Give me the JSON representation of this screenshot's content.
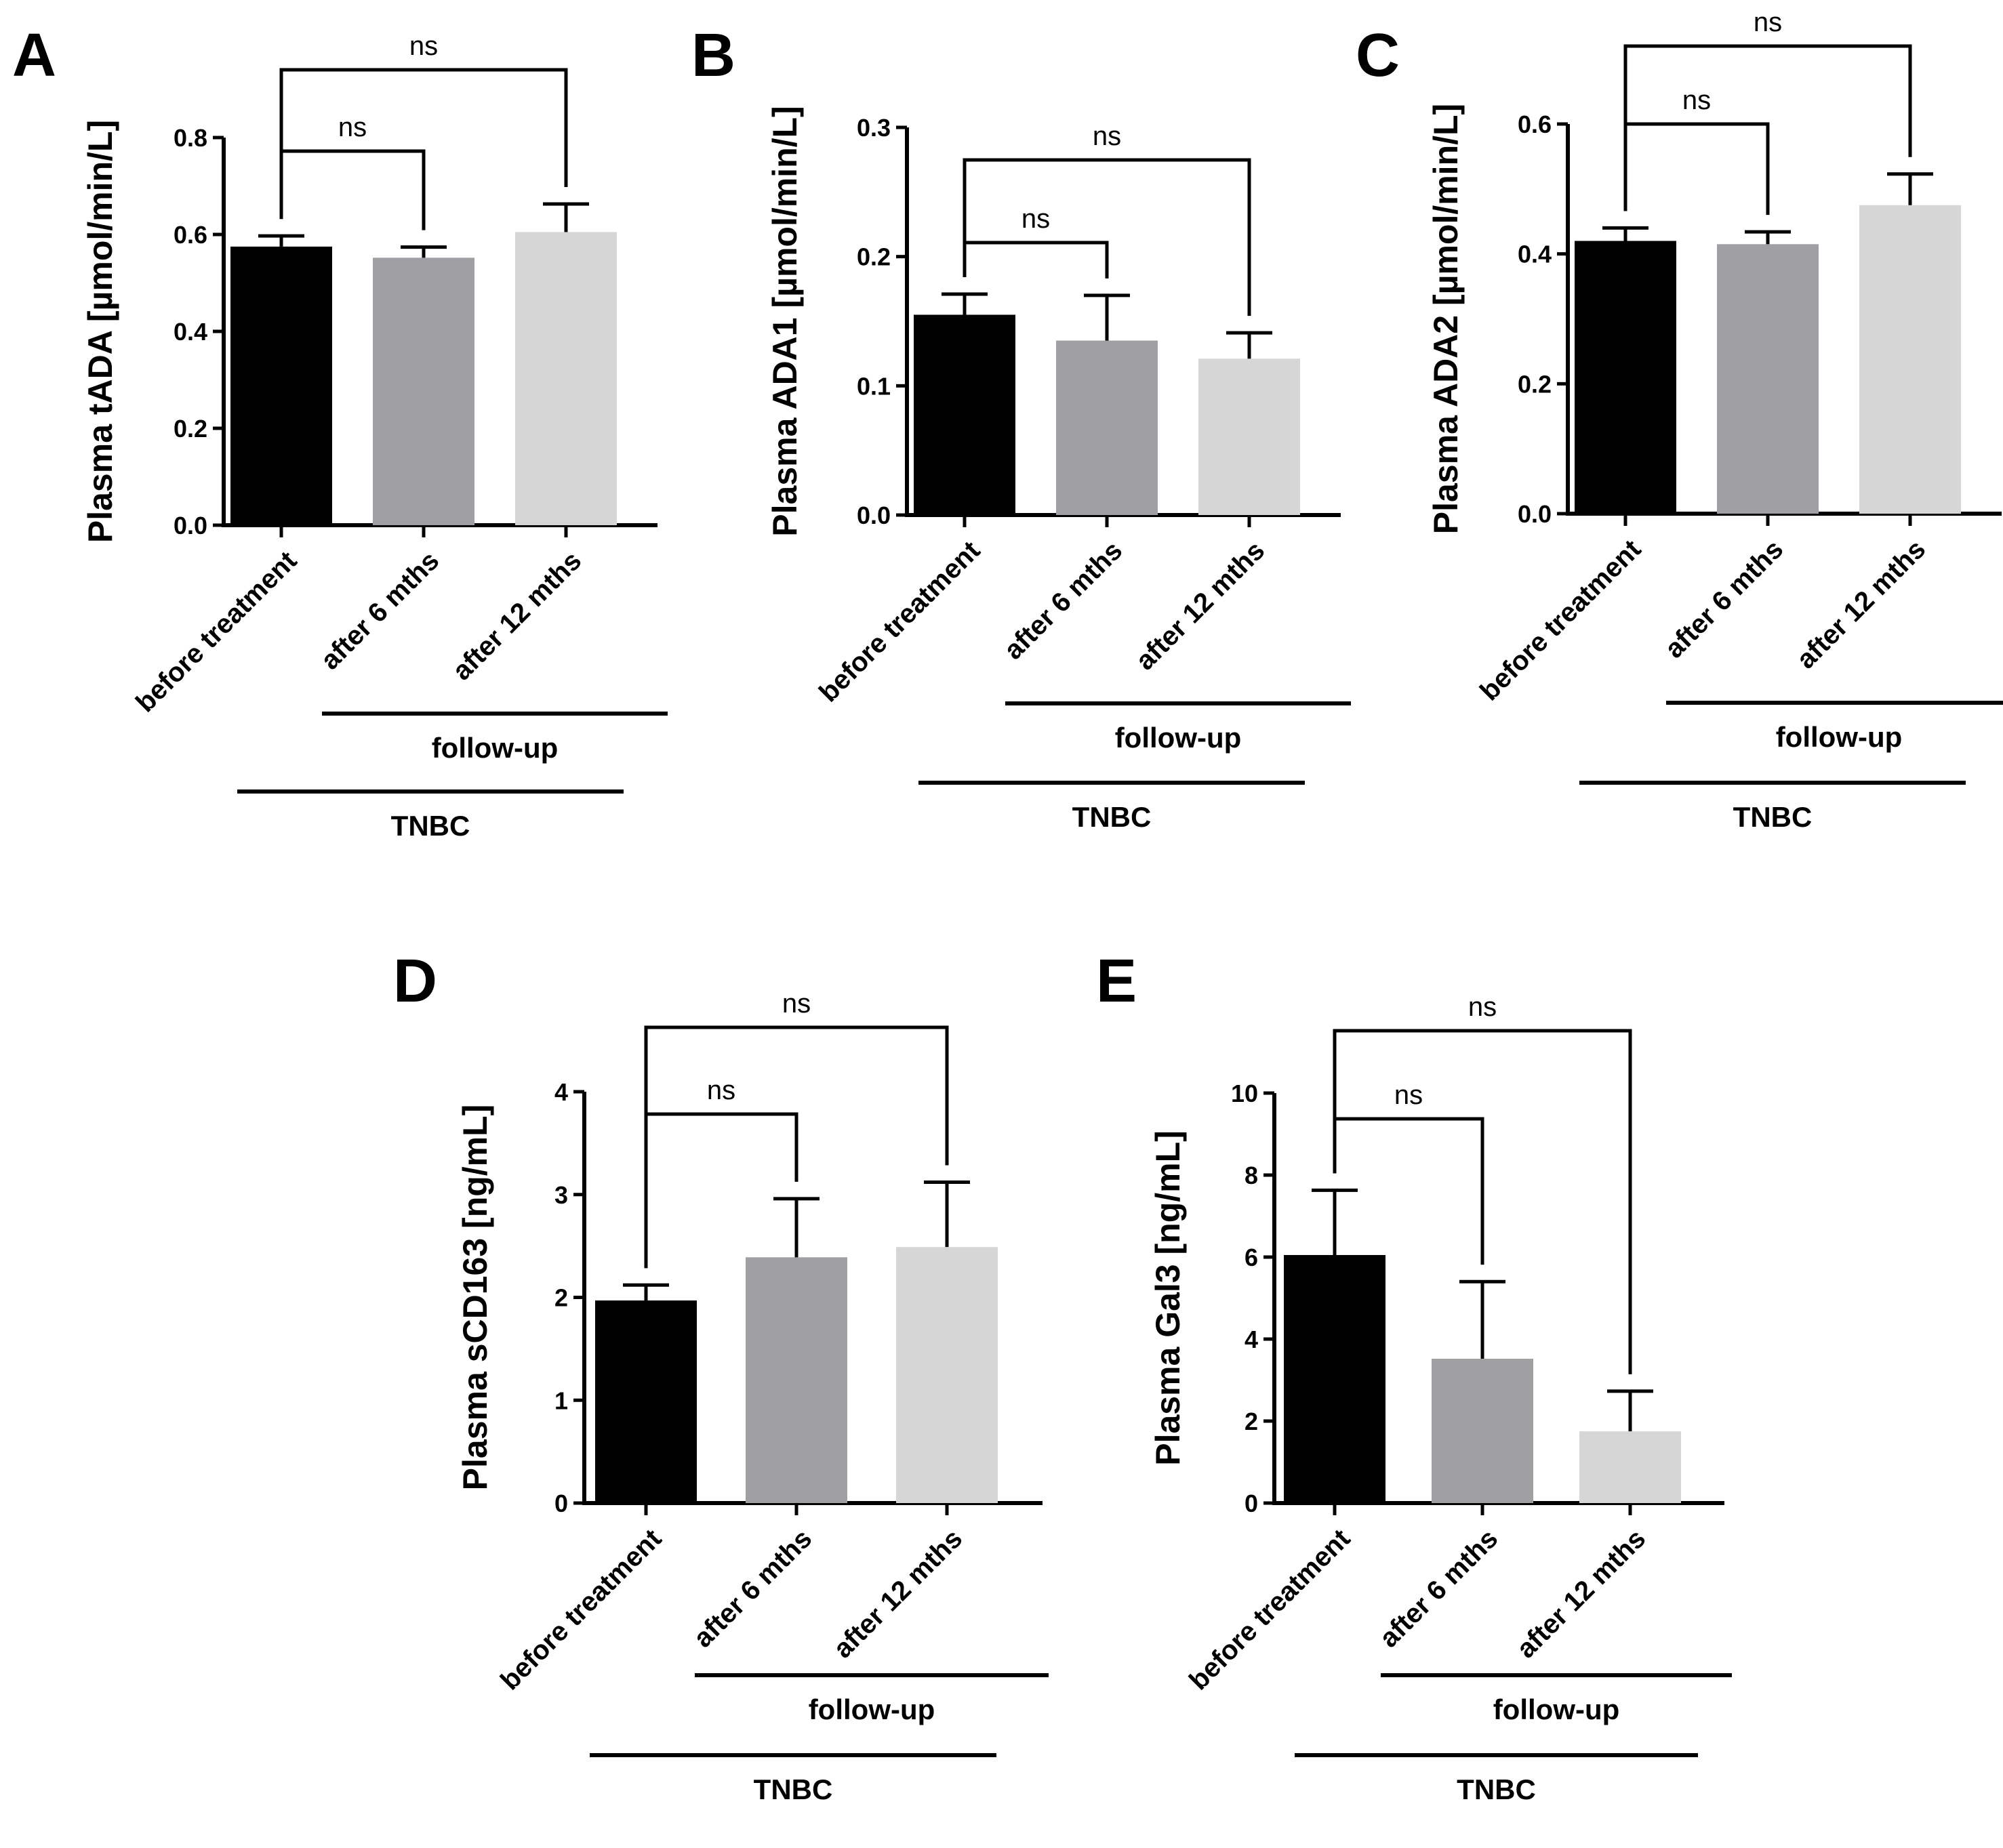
{
  "chart_data": [
    {
      "type": "bar",
      "panel": "A",
      "ylabel": "Plasma tADA [µmol/min/L]",
      "ylim": [
        0,
        0.8
      ],
      "yticks": [
        "0.0",
        "0.2",
        "0.4",
        "0.6",
        "0.8"
      ],
      "categories": [
        "before treatment",
        "after 6 mths",
        "after 12 mths"
      ],
      "values": [
        0.575,
        0.552,
        0.605
      ],
      "errors": [
        0.022,
        0.022,
        0.058
      ],
      "colors": [
        "#000000",
        "#a0a0a4",
        "#d6d6d6"
      ],
      "comparisons": [
        {
          "from": 0,
          "to": 1,
          "label": "ns"
        },
        {
          "from": 0,
          "to": 2,
          "label": "ns"
        }
      ],
      "group_labels": {
        "followup": "follow-up",
        "cohort": "TNBC"
      }
    },
    {
      "type": "bar",
      "panel": "B",
      "ylabel": "Plasma ADA1 [µmol/min/L]",
      "ylim": [
        0,
        0.3
      ],
      "yticks": [
        "0.0",
        "0.1",
        "0.2",
        "0.3"
      ],
      "categories": [
        "before treatment",
        "after 6 mths",
        "after 12 mths"
      ],
      "values": [
        0.155,
        0.135,
        0.121
      ],
      "errors": [
        0.016,
        0.035,
        0.02
      ],
      "colors": [
        "#000000",
        "#a0a0a4",
        "#d6d6d6"
      ],
      "comparisons": [
        {
          "from": 0,
          "to": 1,
          "label": "ns"
        },
        {
          "from": 0,
          "to": 2,
          "label": "ns"
        }
      ],
      "group_labels": {
        "followup": "follow-up",
        "cohort": "TNBC"
      }
    },
    {
      "type": "bar",
      "panel": "C",
      "ylabel": "Plasma ADA2 [µmol/min/L]",
      "ylim": [
        0,
        0.6
      ],
      "yticks": [
        "0.0",
        "0.2",
        "0.4",
        "0.6"
      ],
      "categories": [
        "before treatment",
        "after 6 mths",
        "after 12 mths"
      ],
      "values": [
        0.42,
        0.415,
        0.475
      ],
      "errors": [
        0.02,
        0.019,
        0.048
      ],
      "colors": [
        "#000000",
        "#a0a0a4",
        "#d6d6d6"
      ],
      "comparisons": [
        {
          "from": 0,
          "to": 1,
          "label": "ns"
        },
        {
          "from": 0,
          "to": 2,
          "label": "ns"
        }
      ],
      "group_labels": {
        "followup": "follow-up",
        "cohort": "TNBC"
      }
    },
    {
      "type": "bar",
      "panel": "D",
      "ylabel": "Plasma sCD163 [ng/mL]",
      "ylim": [
        0,
        4
      ],
      "yticks": [
        "0",
        "1",
        "2",
        "3",
        "4"
      ],
      "categories": [
        "before treatment",
        "after 6 mths",
        "after 12 mths"
      ],
      "values": [
        1.97,
        2.39,
        2.49
      ],
      "errors": [
        0.15,
        0.57,
        0.63
      ],
      "colors": [
        "#000000",
        "#a0a0a4",
        "#d6d6d6"
      ],
      "comparisons": [
        {
          "from": 0,
          "to": 1,
          "label": "ns"
        },
        {
          "from": 0,
          "to": 2,
          "label": "ns"
        }
      ],
      "group_labels": {
        "followup": "follow-up",
        "cohort": "TNBC"
      }
    },
    {
      "type": "bar",
      "panel": "E",
      "ylabel": "Plasma Gal3 [ng/mL]",
      "ylim": [
        0,
        10
      ],
      "yticks": [
        "0",
        "2",
        "4",
        "6",
        "8",
        "10"
      ],
      "categories": [
        "before treatment",
        "after 6 mths",
        "after 12 mths"
      ],
      "values": [
        6.05,
        3.52,
        1.75
      ],
      "errors": [
        1.58,
        1.88,
        0.98
      ],
      "colors": [
        "#000000",
        "#a0a0a4",
        "#d6d6d6"
      ],
      "comparisons": [
        {
          "from": 0,
          "to": 1,
          "label": "ns"
        },
        {
          "from": 0,
          "to": 2,
          "label": "ns"
        }
      ],
      "group_labels": {
        "followup": "follow-up",
        "cohort": "TNBC"
      }
    }
  ]
}
